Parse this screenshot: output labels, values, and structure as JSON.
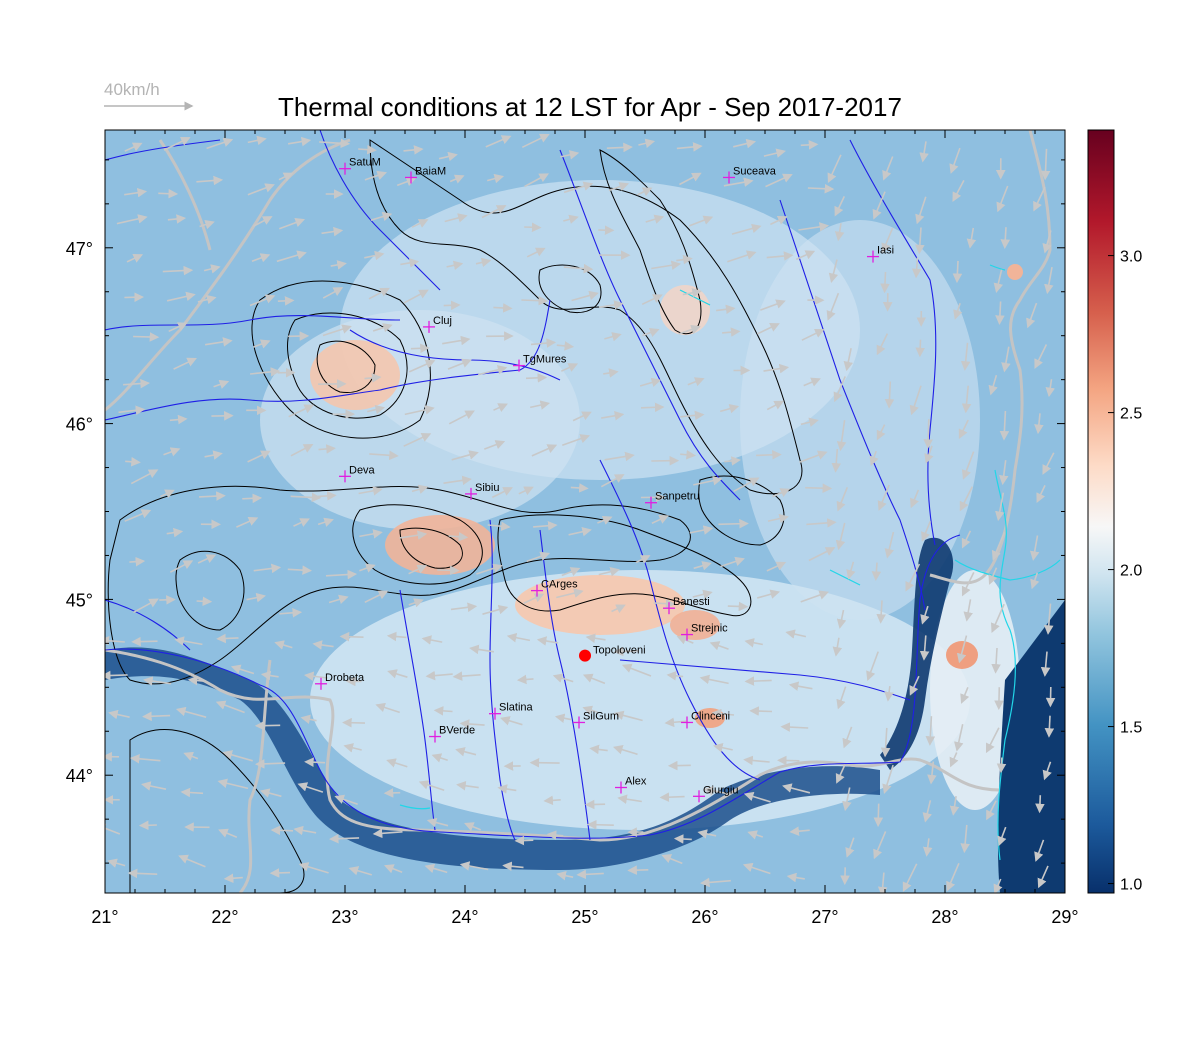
{
  "title": "Thermal conditions at 12 LST for Apr - Sep  2017-2017",
  "wind_scale_label": "40km/h",
  "chart_data": {
    "type": "heatmap",
    "x_ticks": [
      "21°",
      "22°",
      "23°",
      "24°",
      "25°",
      "26°",
      "27°",
      "28°",
      "29°"
    ],
    "x_tick_values": [
      21,
      22,
      23,
      24,
      25,
      26,
      27,
      28,
      29
    ],
    "y_ticks": [
      "44°",
      "45°",
      "46°",
      "47°"
    ],
    "y_tick_values": [
      44,
      45,
      46,
      47
    ],
    "xlim": [
      21,
      29
    ],
    "ylim": [
      43.33,
      47.67
    ],
    "colorbar": {
      "ticks": [
        "1.0",
        "1.5",
        "2.0",
        "2.5",
        "3.0"
      ],
      "tick_values": [
        1.0,
        1.5,
        2.0,
        2.5,
        3.0
      ],
      "range": [
        0.97,
        3.4
      ],
      "colors": [
        "#08306b",
        "#2166ac",
        "#4393c3",
        "#92c5de",
        "#d1e5f0",
        "#f7f7f7",
        "#fddbc7",
        "#f4a582",
        "#d6604d",
        "#b2182b",
        "#67001f"
      ]
    },
    "cities": [
      {
        "name": "SatuM",
        "lon": 23.0,
        "lat": 47.45
      },
      {
        "name": "BaiaM",
        "lon": 23.55,
        "lat": 47.4
      },
      {
        "name": "Suceava",
        "lon": 26.2,
        "lat": 47.4
      },
      {
        "name": "Iasi",
        "lon": 27.4,
        "lat": 46.95
      },
      {
        "name": "Cluj",
        "lon": 23.7,
        "lat": 46.55
      },
      {
        "name": "TgMures",
        "lon": 24.45,
        "lat": 46.33
      },
      {
        "name": "Deva",
        "lon": 23.0,
        "lat": 45.7
      },
      {
        "name": "Sibiu",
        "lon": 24.05,
        "lat": 45.6
      },
      {
        "name": "Sanpetru",
        "lon": 25.55,
        "lat": 45.55
      },
      {
        "name": "CArges",
        "lon": 24.6,
        "lat": 45.05
      },
      {
        "name": "Banesti",
        "lon": 25.7,
        "lat": 44.95
      },
      {
        "name": "Strejnic",
        "lon": 25.85,
        "lat": 44.8
      },
      {
        "name": "Drobeta",
        "lon": 22.8,
        "lat": 44.52
      },
      {
        "name": "Slatina",
        "lon": 24.25,
        "lat": 44.35
      },
      {
        "name": "SilGum",
        "lon": 24.95,
        "lat": 44.3
      },
      {
        "name": "Clinceni",
        "lon": 25.85,
        "lat": 44.3
      },
      {
        "name": "BVerde",
        "lon": 23.75,
        "lat": 44.22
      },
      {
        "name": "Alex",
        "lon": 25.3,
        "lat": 43.93
      },
      {
        "name": "Giurgiu",
        "lon": 25.95,
        "lat": 43.88
      }
    ],
    "marker": {
      "name": "Topoloveni",
      "lon": 25.0,
      "lat": 44.68,
      "color": "#ff0000"
    },
    "colors": {
      "frame": "#000000",
      "rivers": "#1f1fe6",
      "borders": "#c4c4c4",
      "wind_arrows": "#c8c8c8",
      "city_marker": "#e01fe0",
      "lakes": "#22d6e8",
      "contours": "#000000"
    }
  }
}
